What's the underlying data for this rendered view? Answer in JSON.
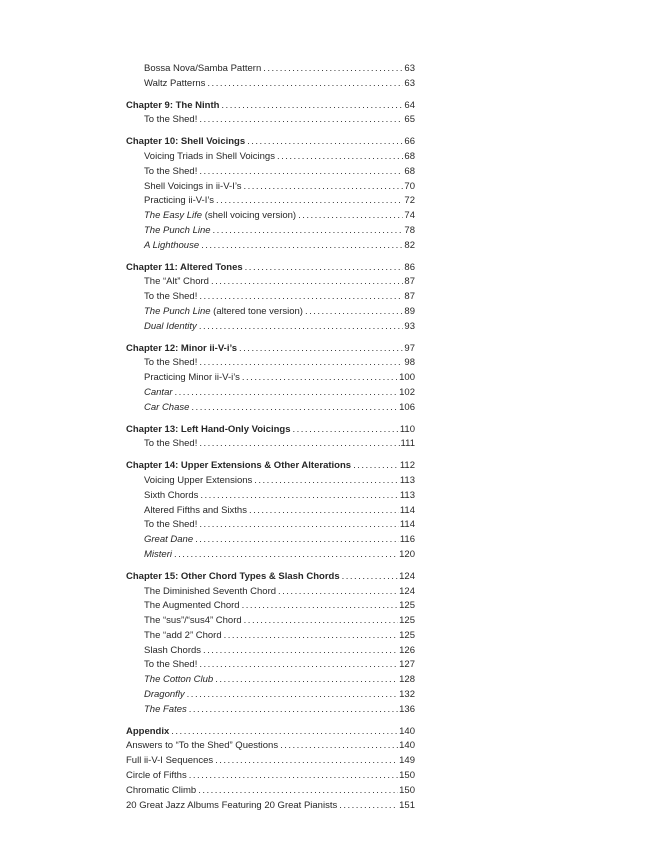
{
  "document": {
    "kind": "book-table-of-contents",
    "background_color": "#ffffff",
    "text_color": "#272727"
  },
  "toc": {
    "sections": [
      {
        "heading": null,
        "flush_items": false,
        "items": [
          {
            "label": "Bossa Nova/Samba Pattern",
            "page": "63",
            "italic": false
          },
          {
            "label": "Waltz Patterns",
            "page": "63",
            "italic": false
          }
        ]
      },
      {
        "heading": {
          "label": "Chapter 9: The Ninth",
          "page": "64"
        },
        "flush_items": false,
        "items": [
          {
            "label": "To the Shed!",
            "page": "65",
            "italic": false
          }
        ]
      },
      {
        "heading": {
          "label": "Chapter 10: Shell Voicings",
          "page": "66"
        },
        "flush_items": false,
        "items": [
          {
            "label": "Voicing Triads in Shell Voicings",
            "page": "68",
            "italic": false
          },
          {
            "label": "To the Shed!",
            "page": "68",
            "italic": false
          },
          {
            "label": "Shell Voicings in ii-V-I’s",
            "page": "70",
            "italic": false
          },
          {
            "label": "Practicing ii-V-I’s",
            "page": "72",
            "italic": false
          },
          {
            "label": "The Easy Life",
            "suffix": " (shell voicing version)",
            "page": "74",
            "italic": true
          },
          {
            "label": "The Punch Line",
            "page": "78",
            "italic": true
          },
          {
            "label": "A Lighthouse",
            "page": "82",
            "italic": true
          }
        ]
      },
      {
        "heading": {
          "label": "Chapter 11: Altered Tones",
          "page": "86"
        },
        "flush_items": false,
        "items": [
          {
            "label": "The “Alt” Chord",
            "page": "87",
            "italic": false
          },
          {
            "label": "To the Shed!",
            "page": "87",
            "italic": false
          },
          {
            "label": "The Punch Line",
            "suffix": " (altered tone version)",
            "page": "89",
            "italic": true
          },
          {
            "label": "Dual Identity",
            "page": "93",
            "italic": true
          }
        ]
      },
      {
        "heading": {
          "label": "Chapter 12: Minor ii-V-i’s",
          "page": "97"
        },
        "flush_items": false,
        "items": [
          {
            "label": "To the Shed!",
            "page": "98",
            "italic": false
          },
          {
            "label": "Practicing Minor ii-V-i’s",
            "page": "100",
            "italic": false
          },
          {
            "label": "Cantar",
            "page": "102",
            "italic": true
          },
          {
            "label": "Car Chase",
            "page": "106",
            "italic": true
          }
        ]
      },
      {
        "heading": {
          "label": "Chapter 13: Left Hand-Only Voicings",
          "page": "110"
        },
        "flush_items": false,
        "items": [
          {
            "label": "To the Shed!",
            "page": "111",
            "italic": false
          }
        ]
      },
      {
        "heading": {
          "label": "Chapter 14: Upper Extensions & Other Alterations",
          "page": "112"
        },
        "flush_items": false,
        "items": [
          {
            "label": "Voicing Upper Extensions",
            "page": "113",
            "italic": false
          },
          {
            "label": "Sixth Chords",
            "page": "113",
            "italic": false
          },
          {
            "label": "Altered Fifths and Sixths",
            "page": "114",
            "italic": false
          },
          {
            "label": "To the Shed!",
            "page": "114",
            "italic": false
          },
          {
            "label": "Great Dane",
            "page": "116",
            "italic": true
          },
          {
            "label": "Misteri",
            "page": "120",
            "italic": true
          }
        ]
      },
      {
        "heading": {
          "label": "Chapter 15: Other Chord Types & Slash Chords",
          "page": "124"
        },
        "flush_items": false,
        "items": [
          {
            "label": "The Diminished Seventh Chord",
            "page": "124",
            "italic": false
          },
          {
            "label": "The Augmented Chord",
            "page": "125",
            "italic": false
          },
          {
            "label": "The “sus”/“sus4” Chord",
            "page": "125",
            "italic": false
          },
          {
            "label": "The “add 2” Chord",
            "page": "125",
            "italic": false
          },
          {
            "label": "Slash Chords",
            "page": "126",
            "italic": false
          },
          {
            "label": "To the Shed!",
            "page": "127",
            "italic": false
          },
          {
            "label": "The Cotton Club",
            "page": "128",
            "italic": true
          },
          {
            "label": "Dragonfly",
            "page": "132",
            "italic": true
          },
          {
            "label": "The Fates",
            "page": "136",
            "italic": true
          }
        ]
      },
      {
        "heading": {
          "label": "Appendix",
          "page": "140"
        },
        "flush_items": true,
        "items": [
          {
            "label": "Answers to “To the Shed” Questions",
            "page": "140",
            "italic": false
          },
          {
            "label": "Full ii-V-I Sequences",
            "page": "149",
            "italic": false
          },
          {
            "label": "Circle of Fifths",
            "page": "150",
            "italic": false
          },
          {
            "label": "Chromatic Climb",
            "page": "150",
            "italic": false
          },
          {
            "label": "20 Great Jazz Albums Featuring 20 Great Pianists",
            "page": "151",
            "italic": false
          }
        ]
      }
    ]
  }
}
